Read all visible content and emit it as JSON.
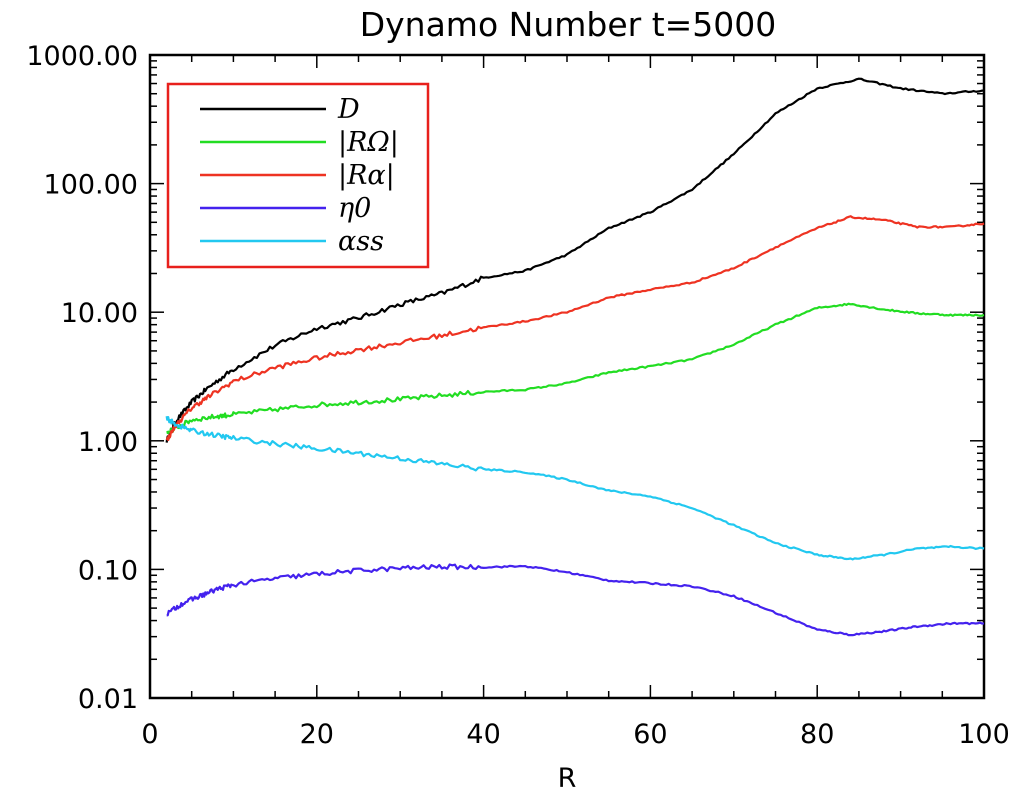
{
  "chart_data": {
    "type": "line",
    "title": "Dynamo Number t=5000",
    "xlabel": "R",
    "ylabel": "",
    "xlim": [
      0,
      100
    ],
    "ylim": [
      0.01,
      1000
    ],
    "yscale": "log",
    "xticks": [
      0,
      20,
      40,
      60,
      80,
      100
    ],
    "xtick_labels": [
      "0",
      "20",
      "40",
      "60",
      "80",
      "100"
    ],
    "yticks": [
      0.01,
      0.1,
      1,
      10,
      100,
      1000
    ],
    "ytick_labels": [
      "0.01",
      "0.10",
      "1.00",
      "10.00",
      "100.00",
      "1000.00"
    ],
    "legend_position": "top-left",
    "legend_border_color": "#e8201c",
    "series": [
      {
        "name": "D",
        "color": "#000000",
        "points": [
          [
            2,
            1.0
          ],
          [
            3,
            1.4
          ],
          [
            5,
            2.0
          ],
          [
            7,
            2.6
          ],
          [
            10,
            3.6
          ],
          [
            15,
            5.5
          ],
          [
            20,
            7.5
          ],
          [
            25,
            9.0
          ],
          [
            30,
            11.5
          ],
          [
            35,
            14.0
          ],
          [
            40,
            18.5
          ],
          [
            45,
            21.0
          ],
          [
            50,
            28.0
          ],
          [
            55,
            45.0
          ],
          [
            60,
            60.0
          ],
          [
            65,
            90.0
          ],
          [
            70,
            170.0
          ],
          [
            75,
            350.0
          ],
          [
            80,
            550.0
          ],
          [
            85,
            650.0
          ],
          [
            90,
            550.0
          ],
          [
            95,
            500.0
          ],
          [
            100,
            530.0
          ]
        ]
      },
      {
        "name": "|RΩ|",
        "color": "#22dd22",
        "points": [
          [
            2,
            1.15
          ],
          [
            3,
            1.25
          ],
          [
            5,
            1.45
          ],
          [
            8,
            1.55
          ],
          [
            10,
            1.6
          ],
          [
            15,
            1.75
          ],
          [
            20,
            1.9
          ],
          [
            25,
            2.0
          ],
          [
            30,
            2.1
          ],
          [
            35,
            2.25
          ],
          [
            40,
            2.4
          ],
          [
            45,
            2.5
          ],
          [
            50,
            2.8
          ],
          [
            55,
            3.4
          ],
          [
            60,
            3.8
          ],
          [
            65,
            4.3
          ],
          [
            70,
            5.6
          ],
          [
            75,
            8.0
          ],
          [
            80,
            10.8
          ],
          [
            84,
            11.6
          ],
          [
            88,
            10.5
          ],
          [
            92,
            9.8
          ],
          [
            96,
            9.5
          ],
          [
            100,
            9.5
          ]
        ]
      },
      {
        "name": "|Rα|",
        "color": "#ee3322",
        "points": [
          [
            2,
            1.0
          ],
          [
            3,
            1.3
          ],
          [
            5,
            1.8
          ],
          [
            7,
            2.2
          ],
          [
            10,
            2.9
          ],
          [
            15,
            3.7
          ],
          [
            20,
            4.4
          ],
          [
            25,
            5.1
          ],
          [
            30,
            5.8
          ],
          [
            35,
            6.6
          ],
          [
            40,
            7.6
          ],
          [
            45,
            8.5
          ],
          [
            50,
            10.0
          ],
          [
            55,
            13.0
          ],
          [
            60,
            15.0
          ],
          [
            65,
            17.0
          ],
          [
            70,
            22.0
          ],
          [
            75,
            32.0
          ],
          [
            80,
            45.0
          ],
          [
            84,
            55.0
          ],
          [
            88,
            52.0
          ],
          [
            92,
            46.0
          ],
          [
            96,
            46.0
          ],
          [
            100,
            49.0
          ]
        ]
      },
      {
        "name": "η0",
        "color": "#4422ee",
        "points": [
          [
            2,
            0.045
          ],
          [
            4,
            0.055
          ],
          [
            6,
            0.062
          ],
          [
            8,
            0.07
          ],
          [
            10,
            0.076
          ],
          [
            15,
            0.085
          ],
          [
            20,
            0.092
          ],
          [
            25,
            0.098
          ],
          [
            30,
            0.102
          ],
          [
            35,
            0.105
          ],
          [
            40,
            0.104
          ],
          [
            45,
            0.106
          ],
          [
            50,
            0.095
          ],
          [
            55,
            0.082
          ],
          [
            60,
            0.078
          ],
          [
            65,
            0.074
          ],
          [
            70,
            0.062
          ],
          [
            75,
            0.046
          ],
          [
            80,
            0.034
          ],
          [
            84,
            0.031
          ],
          [
            88,
            0.033
          ],
          [
            92,
            0.036
          ],
          [
            96,
            0.038
          ],
          [
            100,
            0.038
          ]
        ]
      },
      {
        "name": "αss",
        "color": "#22c8f0",
        "points": [
          [
            2,
            1.5
          ],
          [
            3,
            1.35
          ],
          [
            5,
            1.2
          ],
          [
            8,
            1.1
          ],
          [
            10,
            1.05
          ],
          [
            15,
            0.95
          ],
          [
            20,
            0.87
          ],
          [
            25,
            0.8
          ],
          [
            30,
            0.73
          ],
          [
            35,
            0.66
          ],
          [
            40,
            0.6
          ],
          [
            45,
            0.57
          ],
          [
            50,
            0.5
          ],
          [
            55,
            0.41
          ],
          [
            60,
            0.37
          ],
          [
            65,
            0.3
          ],
          [
            70,
            0.22
          ],
          [
            75,
            0.16
          ],
          [
            80,
            0.13
          ],
          [
            84,
            0.12
          ],
          [
            88,
            0.13
          ],
          [
            92,
            0.145
          ],
          [
            96,
            0.15
          ],
          [
            100,
            0.145
          ]
        ]
      }
    ]
  }
}
